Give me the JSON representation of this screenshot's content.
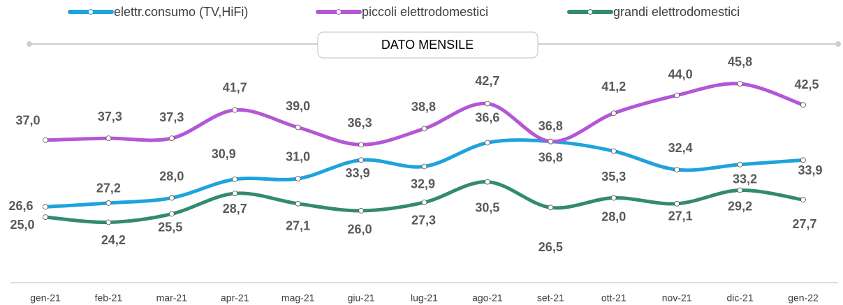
{
  "chart_data": {
    "type": "line",
    "subtitle": "DATO MENSILE",
    "categories": [
      "gen-21",
      "feb-21",
      "mar-21",
      "apr-21",
      "mag-21",
      "giu-21",
      "lug-21",
      "ago-21",
      "set-21",
      "ott-21",
      "nov-21",
      "dic-21",
      "gen-22"
    ],
    "ylim": [
      15,
      50
    ],
    "series": [
      {
        "name": "elettr.consumo (TV,HiFi)",
        "color": "#1ea3dc",
        "values": [
          26.6,
          27.2,
          28.0,
          30.9,
          31.0,
          33.9,
          32.9,
          36.6,
          36.8,
          35.3,
          32.4,
          33.2,
          33.9
        ],
        "value_labels": [
          "26,6",
          "27,2",
          "28,0",
          "30,9",
          "31,0",
          "33,9",
          "32,9",
          "36,6",
          "36,8",
          "35,3",
          "32,4",
          "33,2",
          "33,9"
        ]
      },
      {
        "name": "piccoli elettrodomestici",
        "color": "#b357d6",
        "values": [
          37.0,
          37.3,
          37.3,
          41.7,
          39.0,
          36.3,
          38.8,
          42.7,
          36.8,
          41.2,
          44.0,
          45.8,
          42.5
        ],
        "value_labels": [
          "37,0",
          "37,3",
          "37,3",
          "41,7",
          "39,0",
          "36,3",
          "38,8",
          "42,7",
          "36,8",
          "41,2",
          "44,0",
          "45,8",
          "42,5"
        ]
      },
      {
        "name": "grandi elettrodomestici",
        "color": "#338a72",
        "values": [
          25.0,
          24.2,
          25.5,
          28.7,
          27.1,
          26.0,
          27.3,
          30.5,
          26.5,
          28.0,
          27.1,
          29.2,
          27.7
        ],
        "value_labels": [
          "25,0",
          "24,2",
          "25,5",
          "28,7",
          "27,1",
          "26,0",
          "27,3",
          "30,5",
          "26,5",
          "28,0",
          "27,1",
          "29,2",
          "27,7"
        ]
      }
    ]
  }
}
